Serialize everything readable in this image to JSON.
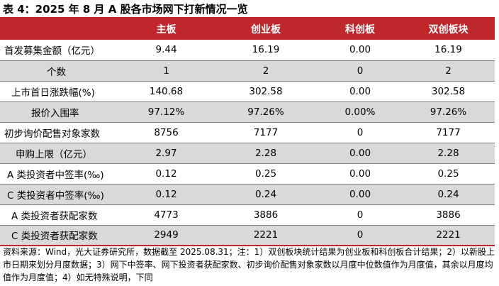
{
  "title": "表 4：2025 年 8 月 A 股各市场网下打新情况一览",
  "table": {
    "headers": [
      "",
      "主板",
      "创业板",
      "科创板",
      "双创板块"
    ],
    "rows": [
      {
        "label": "首发募集金额（亿元）",
        "values": [
          "9.44",
          "16.19",
          "0.00",
          "16.19"
        ]
      },
      {
        "label": "个数",
        "values": [
          "1",
          "2",
          "0",
          "2"
        ],
        "indent": true
      },
      {
        "label": "上市首日涨跌幅(%)",
        "values": [
          "140.68",
          "302.58",
          "0.00",
          "302.58"
        ]
      },
      {
        "label": "报价入围率",
        "values": [
          "97.12%",
          "97.26%",
          "0.00%",
          "97.26%"
        ],
        "indent": true
      },
      {
        "label": "初步询价配售对象家数",
        "values": [
          "8756",
          "7177",
          "0",
          "7177"
        ]
      },
      {
        "label": "申购上限（亿元）",
        "values": [
          "2.97",
          "2.28",
          "0.00",
          "2.28"
        ]
      },
      {
        "label": "A 类投资者中签率(‰)",
        "values": [
          "0.12",
          "0.25",
          "0.00",
          "0.25"
        ]
      },
      {
        "label": "C 类投资者中签率(‰)",
        "values": [
          "0.12",
          "0.24",
          "0.00",
          "0.24"
        ]
      },
      {
        "label": "A 类投资者获配家数",
        "values": [
          "4773",
          "3886",
          "0",
          "3886"
        ]
      },
      {
        "label": "C 类投资者获配家数",
        "values": [
          "2949",
          "2221",
          "0",
          "2221"
        ]
      }
    ]
  },
  "note": "资料来源：Wind，光大证券研究所，数据截至 2025.08.31；注：1）双创板块统计结果为创业板和科创板合计结果；2）以新股上市日期来划分月度数据；3）网下中签率、网下投资者获配家数、初步询价配售对象家数以月度中位数值作为月度值，其余以月度均值作为月度值；4）如无特殊说明，下同",
  "colors": {
    "accent": "#c0272d",
    "stripe": "#d9d9d9"
  }
}
